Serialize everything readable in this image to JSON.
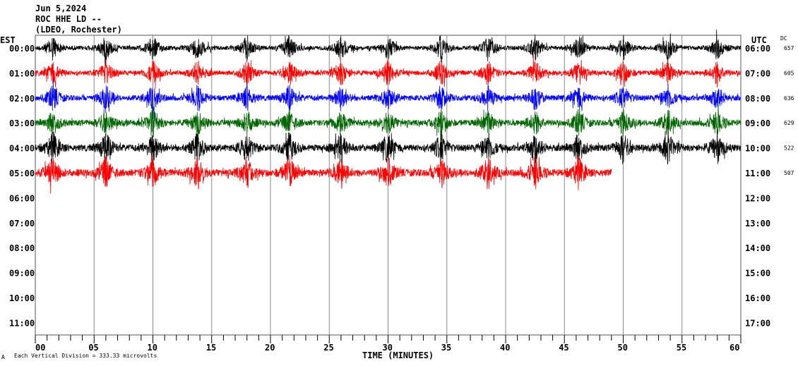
{
  "chart_data": {
    "type": "line",
    "title": [
      "Jun 5,2024",
      "ROC HHE LD --",
      "(LDEO, Rochester)"
    ],
    "left_axis_label": "EST",
    "right_axis_label": "UTC",
    "dc_label": "DC",
    "xlabel": "TIME (MINUTES)",
    "xlim": [
      0,
      60
    ],
    "x_ticks": [
      "00",
      "05",
      "10",
      "15",
      "20",
      "25",
      "30",
      "35",
      "40",
      "45",
      "50",
      "55",
      "60"
    ],
    "est_labels": [
      "00:00",
      "01:00",
      "02:00",
      "03:00",
      "04:00",
      "05:00",
      "06:00",
      "07:00",
      "08:00",
      "09:00",
      "10:00",
      "11:00"
    ],
    "utc_labels": [
      "06:00",
      "07:00",
      "08:00",
      "09:00",
      "10:00",
      "11:00",
      "12:00",
      "13:00",
      "14:00",
      "15:00",
      "16:00",
      "17:00"
    ],
    "grid": "vertical every 5 minutes",
    "traces": [
      {
        "hour_est": "00:00",
        "color": "#000000",
        "dc": "657",
        "end_minute": 60
      },
      {
        "hour_est": "01:00",
        "color": "#ff0000",
        "dc": "605",
        "end_minute": 60
      },
      {
        "hour_est": "02:00",
        "color": "#0000ff",
        "dc": "636",
        "end_minute": 60
      },
      {
        "hour_est": "03:00",
        "color": "#006400",
        "dc": "629",
        "end_minute": 60
      },
      {
        "hour_est": "04:00",
        "color": "#000000",
        "dc": "522",
        "end_minute": 60
      },
      {
        "hour_est": "05:00",
        "color": "#ff0000",
        "dc": "507",
        "end_minute": 49
      }
    ],
    "burst_minutes": [
      1.5,
      6,
      10,
      13.8,
      18,
      21.6,
      26,
      30,
      34.5,
      38.5,
      42.5,
      46.2,
      50,
      53.8,
      58
    ],
    "footer_mark": "A",
    "scale_note": "Each Vertical Division =  333.33 microvolts"
  }
}
